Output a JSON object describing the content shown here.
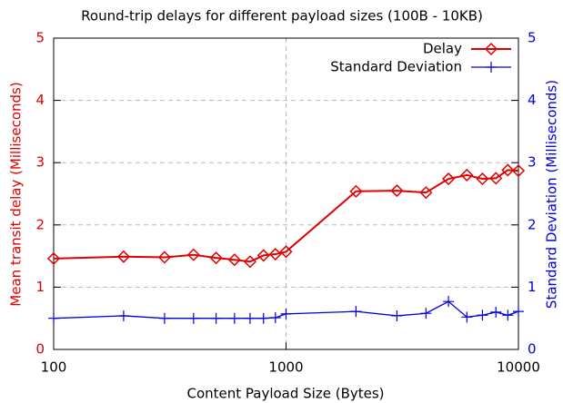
{
  "chart_data": {
    "type": "line",
    "title": "Round-trip delays for different payload sizes (100B - 10KB)",
    "xlabel": "Content Payload Size (Bytes)",
    "ylabel": "Mean transit delay  (Milliseconds)",
    "y2label": "Standard Deviation (Milliseconds)",
    "x": [
      100,
      200,
      300,
      400,
      500,
      600,
      700,
      800,
      900,
      1000,
      2000,
      3000,
      4000,
      5000,
      6000,
      7000,
      8000,
      9000,
      10000
    ],
    "series": [
      {
        "name": "Delay",
        "color": "#e00000",
        "marker": "diamond",
        "axis": "y",
        "values": [
          1.46,
          1.49,
          1.48,
          1.52,
          1.47,
          1.44,
          1.41,
          1.51,
          1.53,
          1.57,
          2.54,
          2.55,
          2.52,
          2.74,
          2.8,
          2.74,
          2.75,
          2.88,
          2.87
        ]
      },
      {
        "name": "Standard Deviation",
        "color": "#0000e0",
        "marker": "plus",
        "axis": "y2",
        "values": [
          0.5,
          0.54,
          0.5,
          0.5,
          0.5,
          0.5,
          0.5,
          0.5,
          0.51,
          0.57,
          0.61,
          0.54,
          0.58,
          0.77,
          0.52,
          0.55,
          0.6,
          0.55,
          0.61
        ]
      }
    ],
    "xscale": "log",
    "xlim": [
      100,
      10000
    ],
    "xticks": [
      100,
      1000,
      10000
    ],
    "ylim": [
      0,
      5
    ],
    "yticks": [
      0,
      1,
      2,
      3,
      4,
      5
    ],
    "y2lim": [
      0,
      5
    ],
    "y2ticks": [
      0,
      1,
      2,
      3,
      4,
      5
    ],
    "grid": true,
    "legend": "top-right"
  }
}
